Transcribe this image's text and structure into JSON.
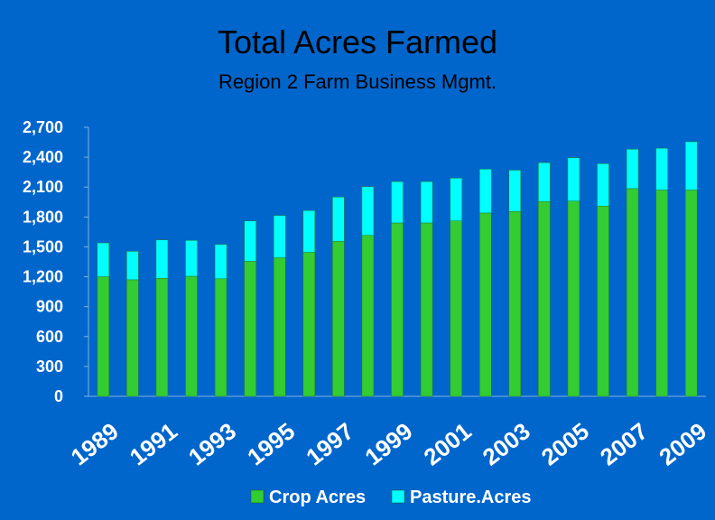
{
  "chart_data": {
    "type": "bar",
    "stacked": true,
    "title": "Total Acres Farmed",
    "subtitle": "Region 2 Farm Business Mgmt.",
    "years": [
      "1989",
      "1990",
      "1991",
      "1992",
      "1993",
      "1994",
      "1995",
      "1996",
      "1997",
      "1998",
      "1999",
      "2000",
      "2001",
      "2002",
      "2003",
      "2004",
      "2005",
      "2006",
      "2007",
      "2008",
      "2009"
    ],
    "x_tick_labels": [
      "1989",
      "1991",
      "1993",
      "1995",
      "1997",
      "1999",
      "2001",
      "2003",
      "2005",
      "2007",
      "2009"
    ],
    "series": [
      {
        "name": "Crop Acres",
        "color": "#33cc33",
        "values": [
          1200,
          1170,
          1185,
          1205,
          1180,
          1355,
          1390,
          1445,
          1555,
          1615,
          1740,
          1740,
          1760,
          1840,
          1855,
          1955,
          1960,
          1910,
          2085,
          2070,
          2070
        ]
      },
      {
        "name": "Pasture.Acres",
        "color": "#00ffff",
        "values": [
          340,
          285,
          385,
          360,
          345,
          405,
          425,
          420,
          445,
          490,
          415,
          415,
          430,
          440,
          415,
          390,
          435,
          425,
          395,
          420,
          485
        ]
      }
    ],
    "y_ticks": [
      "0",
      "300",
      "600",
      "900",
      "1,200",
      "1,500",
      "1,800",
      "2,100",
      "2,400",
      "2,700"
    ],
    "ylim": [
      0,
      2700
    ],
    "grid": false,
    "legend_position": "bottom"
  }
}
